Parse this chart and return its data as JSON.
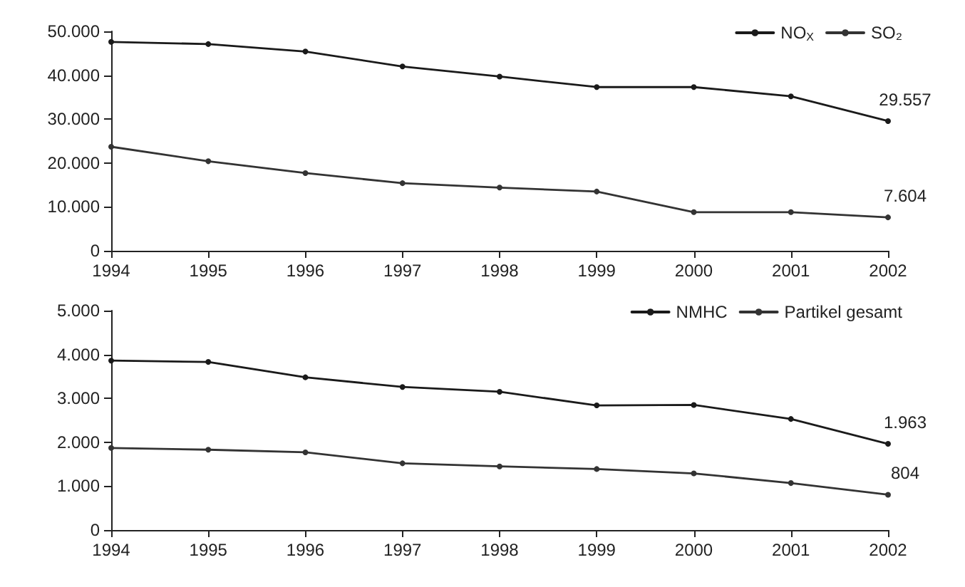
{
  "chart_data": [
    {
      "type": "line",
      "categories": [
        "1994",
        "1995",
        "1996",
        "1997",
        "1998",
        "1999",
        "2000",
        "2001",
        "2002"
      ],
      "ylim": [
        0,
        50000
      ],
      "yticks": [
        {
          "value": 0,
          "label": "0"
        },
        {
          "value": 10000,
          "label": "10.000"
        },
        {
          "value": 20000,
          "label": "20.000"
        },
        {
          "value": 30000,
          "label": "30.000"
        },
        {
          "value": 40000,
          "label": "40.000"
        },
        {
          "value": 50000,
          "label": "50.000"
        }
      ],
      "legend": "top right",
      "grid": false,
      "marker": "circle",
      "line_style": "solid",
      "series": [
        {
          "name": "NO$_{X}$",
          "color": "#1a1a1a",
          "values": [
            47600,
            47100,
            45400,
            42000,
            39700,
            37300,
            37300,
            35200,
            29557
          ],
          "value_labels": [
            null,
            null,
            null,
            null,
            null,
            null,
            null,
            null,
            "29.557"
          ]
        },
        {
          "name": "SO₂",
          "color": "#333333",
          "values": [
            23700,
            20400,
            17700,
            15400,
            14400,
            13500,
            8800,
            8800,
            7604
          ],
          "value_labels": [
            null,
            null,
            null,
            null,
            null,
            null,
            null,
            null,
            "7.604"
          ]
        }
      ]
    },
    {
      "type": "line",
      "categories": [
        "1994",
        "1995",
        "1996",
        "1997",
        "1998",
        "1999",
        "2000",
        "2001",
        "2002"
      ],
      "ylim": [
        0,
        5000
      ],
      "yticks": [
        {
          "value": 0,
          "label": "0"
        },
        {
          "value": 1000,
          "label": "1.000"
        },
        {
          "value": 2000,
          "label": "2.000"
        },
        {
          "value": 3000,
          "label": "3.000"
        },
        {
          "value": 4000,
          "label": "4.000"
        },
        {
          "value": 5000,
          "label": "5.000"
        }
      ],
      "legend": "top right",
      "grid": false,
      "marker": "circle",
      "line_style": "solid",
      "series": [
        {
          "name": "NMHC",
          "color": "#1a1a1a",
          "values": [
            3860,
            3830,
            3480,
            3260,
            3150,
            2840,
            2850,
            2530,
            1963
          ],
          "value_labels": [
            null,
            null,
            null,
            null,
            null,
            null,
            null,
            null,
            "1.963"
          ]
        },
        {
          "name": "Partikel gesamt",
          "color": "#333333",
          "values": [
            1870,
            1830,
            1770,
            1520,
            1450,
            1390,
            1290,
            1070,
            804
          ],
          "value_labels": [
            null,
            null,
            null,
            null,
            null,
            null,
            null,
            null,
            "804"
          ]
        }
      ]
    }
  ]
}
